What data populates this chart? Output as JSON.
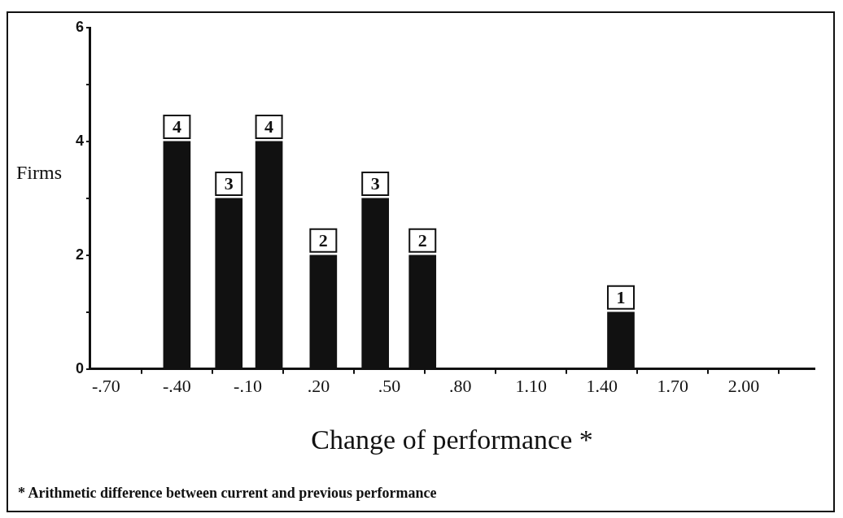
{
  "chart_data": {
    "type": "bar",
    "xlabel": "Change of performance *",
    "ylabel": "Firms",
    "x": [
      -0.4,
      -0.18,
      -0.01,
      0.22,
      0.44,
      0.64,
      1.48
    ],
    "values": [
      4,
      3,
      4,
      2,
      3,
      2,
      1
    ],
    "color": "#111111",
    "data_labels": true,
    "xlim": [
      -0.77,
      2.3
    ],
    "xticks": [
      {
        "value": -0.7,
        "label": "-.70"
      },
      {
        "value": -0.4,
        "label": "-.40"
      },
      {
        "value": -0.1,
        "label": "-.10"
      },
      {
        "value": 0.2,
        "label": ".20"
      },
      {
        "value": 0.5,
        "label": ".50"
      },
      {
        "value": 0.8,
        "label": ".80"
      },
      {
        "value": 1.1,
        "label": "1.10"
      },
      {
        "value": 1.4,
        "label": "1.40"
      },
      {
        "value": 1.7,
        "label": "1.70"
      },
      {
        "value": 2.0,
        "label": "2.00"
      }
    ],
    "ylim": [
      0,
      6
    ],
    "yticks": [
      0,
      {
        "value": 1,
        "label": null
      },
      2,
      {
        "value": 3,
        "label": null
      },
      4,
      {
        "value": 5,
        "label": null
      },
      6
    ],
    "grid": false,
    "legend": false,
    "annotations": [
      "* Arithmetic difference between current and previous performance"
    ]
  }
}
